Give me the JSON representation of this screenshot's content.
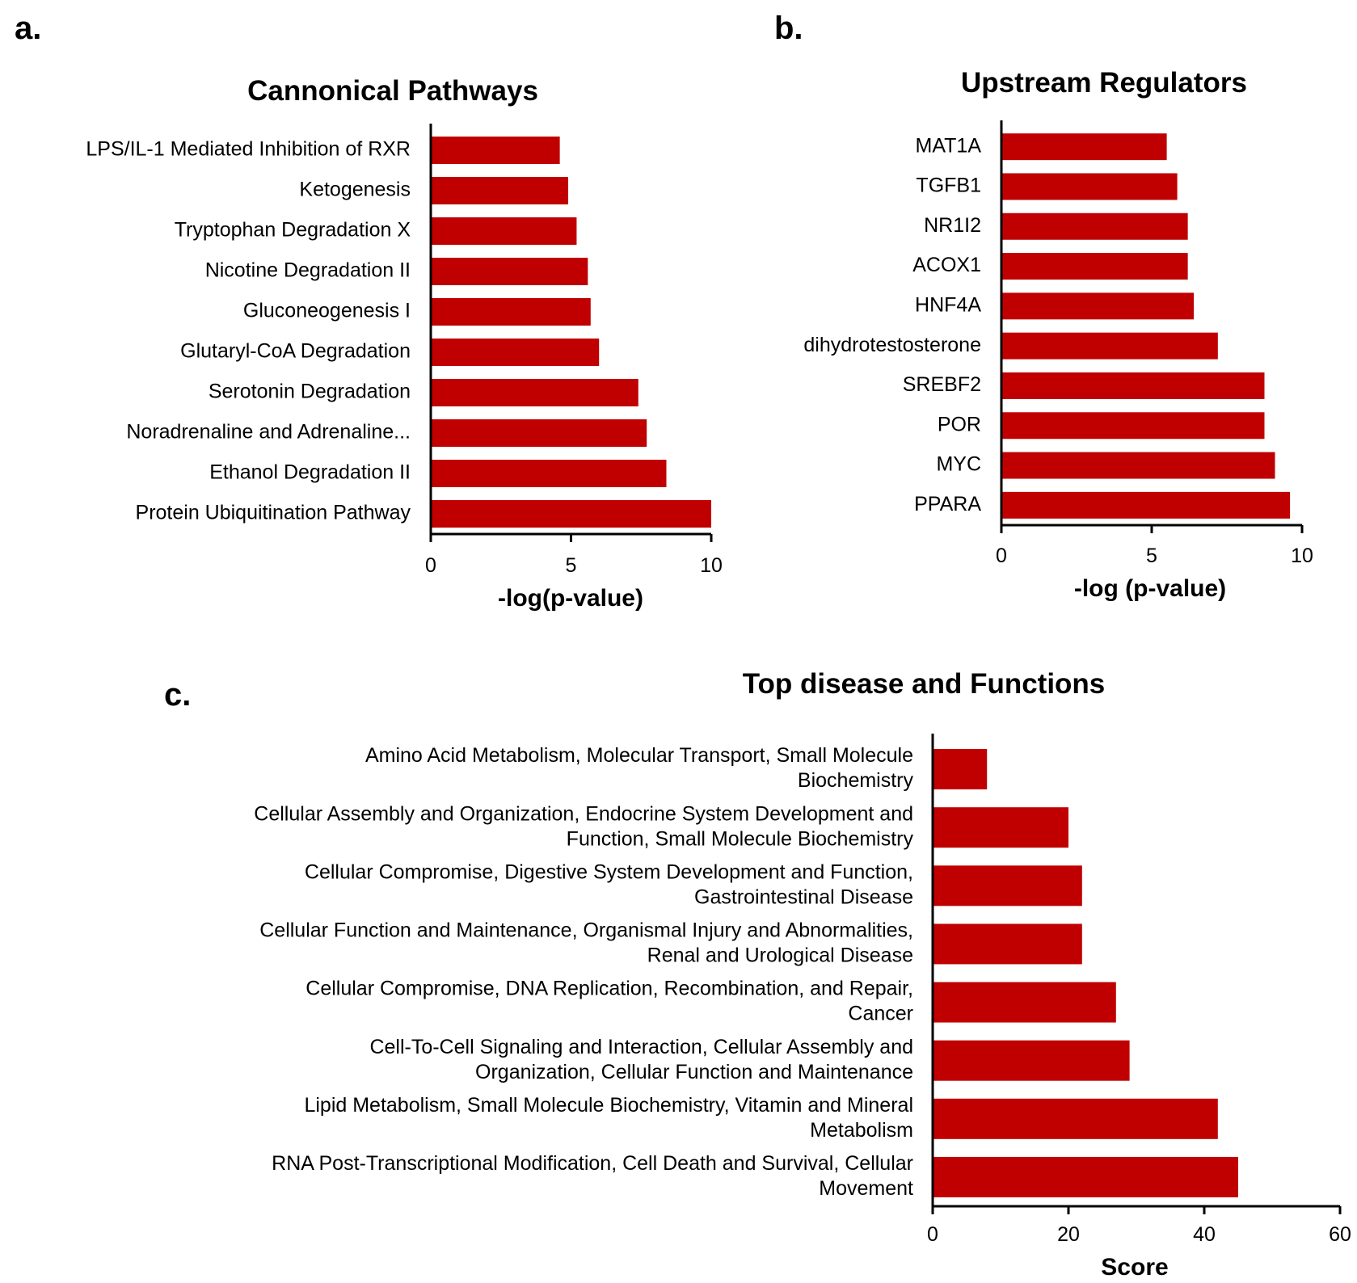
{
  "colors": {
    "bar": "#c00000",
    "axis": "#000000"
  },
  "chart_data": [
    {
      "panel": "a.",
      "type": "bar",
      "orientation": "horizontal",
      "title": "Cannonical Pathways",
      "xlabel": "-log(p-value)",
      "categories": [
        "LPS/IL-1 Mediated Inhibition of RXR",
        "Ketogenesis",
        "Tryptophan Degradation X",
        "Nicotine Degradation II",
        "Gluconeogenesis I",
        "Glutaryl-CoA Degradation",
        "Serotonin Degradation",
        "Noradrenaline and Adrenaline...",
        "Ethanol Degradation II",
        "Protein Ubiquitination Pathway"
      ],
      "values": [
        4.6,
        4.9,
        5.2,
        5.6,
        5.7,
        6.0,
        7.4,
        7.7,
        8.4,
        10.0
      ],
      "xlim": [
        0,
        10
      ],
      "xticks": [
        "0",
        "5",
        "10"
      ]
    },
    {
      "panel": "b.",
      "type": "bar",
      "orientation": "horizontal",
      "title": "Upstream Regulators",
      "xlabel": "-log (p-value)",
      "categories": [
        "MAT1A",
        "TGFB1",
        "NR1I2",
        "ACOX1",
        "HNF4A",
        "dihydrotestosterone",
        "SREBF2",
        "POR",
        "MYC",
        "PPARA"
      ],
      "values": [
        5.5,
        5.85,
        6.2,
        6.2,
        6.4,
        7.2,
        8.75,
        8.75,
        9.1,
        9.6
      ],
      "xlim": [
        0,
        10
      ],
      "xticks": [
        "0",
        "5",
        "10"
      ]
    },
    {
      "panel": "c.",
      "type": "bar",
      "orientation": "horizontal",
      "title": "Top disease and Functions",
      "xlabel": "Score",
      "categories": [
        [
          "Amino Acid Metabolism, Molecular Transport, Small Molecule",
          "Biochemistry"
        ],
        [
          "Cellular Assembly and Organization, Endocrine System Development and",
          "Function, Small Molecule Biochemistry"
        ],
        [
          "Cellular Compromise, Digestive System Development and Function,",
          "Gastrointestinal Disease"
        ],
        [
          "Cellular Function and Maintenance, Organismal Injury and Abnormalities,",
          "Renal and Urological Disease"
        ],
        [
          "Cellular Compromise, DNA Replication, Recombination, and Repair,",
          "Cancer"
        ],
        [
          "Cell-To-Cell Signaling and Interaction, Cellular Assembly and",
          "Organization, Cellular Function and Maintenance"
        ],
        [
          "Lipid Metabolism, Small Molecule Biochemistry, Vitamin and Mineral",
          "Metabolism"
        ],
        [
          "RNA Post-Transcriptional Modification, Cell Death and Survival, Cellular",
          "Movement"
        ]
      ],
      "values": [
        8,
        20,
        22,
        22,
        27,
        29,
        42,
        45
      ],
      "xlim": [
        0,
        60
      ],
      "xticks": [
        "0",
        "20",
        "40",
        "60"
      ]
    }
  ]
}
